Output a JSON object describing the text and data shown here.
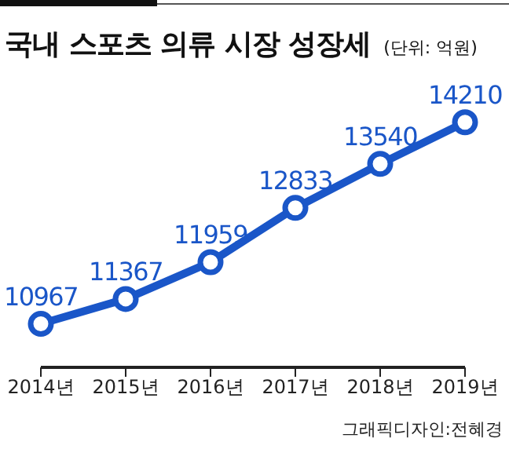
{
  "chart_data": {
    "type": "line",
    "title": "국내 스포츠 의류 시장 성장세",
    "subtitle": "(단위: 억원)",
    "categories": [
      "2014년",
      "2015년",
      "2016년",
      "2017년",
      "2018년",
      "2019년"
    ],
    "series": [
      {
        "color": "#1a56c8",
        "values": [
          10967,
          11367,
          11959,
          12833,
          13540,
          14210
        ]
      }
    ],
    "data_labels": true,
    "marker": "circle",
    "grid": false,
    "legend": false,
    "tick_labels": "x",
    "annotations": [
      "그래픽디자인:전혜경"
    ]
  }
}
